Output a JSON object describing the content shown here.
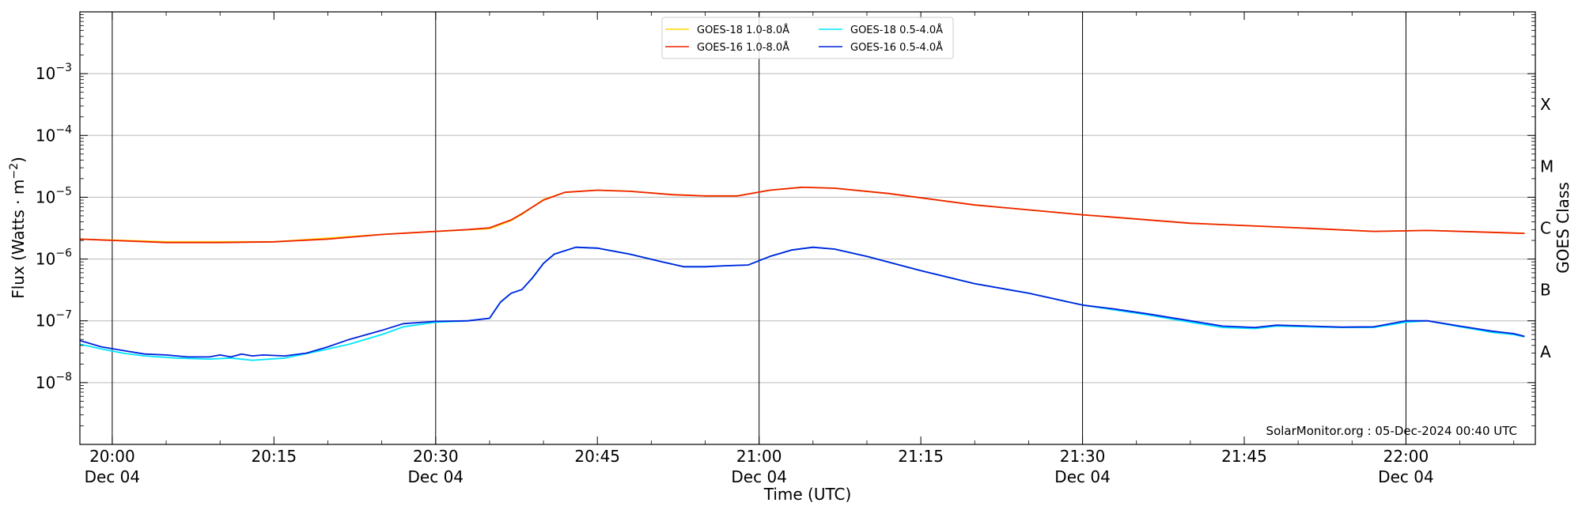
{
  "chart_data": {
    "type": "line",
    "xlabel": "Time (UTC)",
    "ylabel_pre": "Flux (Watts · m",
    "ylabel_sup": "−2",
    "ylabel_post": ")",
    "right_label": "GOES Class",
    "watermark": "SolarMonitor.org : 05-Dec-2024 00:40 UTC",
    "y_scale": "log",
    "ylim": [
      1e-09,
      0.01
    ],
    "xlim": [
      "2024-12-04T19:57:00",
      "2024-12-04T22:12:00"
    ],
    "grid": "horizontal at decades",
    "legend_position": "top-center",
    "y_ticks": [
      {
        "value": 1e-08,
        "base": "10",
        "exp": "−8"
      },
      {
        "value": 1e-07,
        "base": "10",
        "exp": "−7"
      },
      {
        "value": 1e-06,
        "base": "10",
        "exp": "−6"
      },
      {
        "value": 1e-05,
        "base": "10",
        "exp": "−5"
      },
      {
        "value": 0.0001,
        "base": "10",
        "exp": "−4"
      },
      {
        "value": 0.001,
        "base": "10",
        "exp": "−3"
      }
    ],
    "x_ticks": [
      {
        "time": "2024-12-04T20:00:00",
        "label": "20:00",
        "date": "Dec 04",
        "vline": true
      },
      {
        "time": "2024-12-04T20:15:00",
        "label": "20:15",
        "date": "",
        "vline": false
      },
      {
        "time": "2024-12-04T20:30:00",
        "label": "20:30",
        "date": "Dec 04",
        "vline": true
      },
      {
        "time": "2024-12-04T20:45:00",
        "label": "20:45",
        "date": "",
        "vline": false
      },
      {
        "time": "2024-12-04T21:00:00",
        "label": "21:00",
        "date": "Dec 04",
        "vline": true
      },
      {
        "time": "2024-12-04T21:15:00",
        "label": "21:15",
        "date": "",
        "vline": false
      },
      {
        "time": "2024-12-04T21:30:00",
        "label": "21:30",
        "date": "Dec 04",
        "vline": true
      },
      {
        "time": "2024-12-04T21:45:00",
        "label": "21:45",
        "date": "",
        "vline": false
      },
      {
        "time": "2024-12-04T22:00:00",
        "label": "22:00",
        "date": "Dec 04",
        "vline": true
      }
    ],
    "goes_classes": [
      {
        "label": "A",
        "value": 3.16e-08
      },
      {
        "label": "B",
        "value": 3.16e-07
      },
      {
        "label": "C",
        "value": 3.16e-06
      },
      {
        "label": "M",
        "value": 3.16e-05
      },
      {
        "label": "X",
        "value": 0.000316
      }
    ],
    "series": [
      {
        "name": "GOES-18 1.0-8.0Å",
        "color": "#ffd700",
        "x": [
          "2024-12-04T19:57:00",
          "2024-12-04T20:05:00",
          "2024-12-04T20:15:00",
          "2024-12-04T20:25:00",
          "2024-12-04T20:30:00",
          "2024-12-04T20:35:00",
          "2024-12-04T20:37:00",
          "2024-12-04T20:38:00",
          "2024-12-04T20:40:00",
          "2024-12-04T20:42:00",
          "2024-12-04T20:45:00",
          "2024-12-04T20:48:00",
          "2024-12-04T20:52:00",
          "2024-12-04T20:55:00",
          "2024-12-04T20:58:00",
          "2024-12-04T21:01:00",
          "2024-12-04T21:04:00",
          "2024-12-04T21:07:00",
          "2024-12-04T21:12:00",
          "2024-12-04T21:20:00",
          "2024-12-04T21:30:00",
          "2024-12-04T21:40:00",
          "2024-12-04T21:50:00",
          "2024-12-04T21:57:00",
          "2024-12-04T22:02:00",
          "2024-12-04T22:11:00"
        ],
        "y": [
          2.1e-06,
          1.9e-06,
          1.9e-06,
          2.5e-06,
          2.8e-06,
          3.1e-06,
          4.2e-06,
          5.3e-06,
          9.2e-06,
          1.2e-05,
          1.3e-05,
          1.25e-05,
          1.1e-05,
          1.05e-05,
          1.05e-05,
          1.3e-05,
          1.45e-05,
          1.4e-05,
          1.15e-05,
          7.5e-06,
          5.2e-06,
          3.8e-06,
          3.2e-06,
          2.8e-06,
          2.9e-06,
          2.6e-06
        ]
      },
      {
        "name": "GOES-16 1.0-8.0Å",
        "color": "#ee2200",
        "x": [
          "2024-12-04T19:57:00",
          "2024-12-04T20:00:00",
          "2024-12-04T20:05:00",
          "2024-12-04T20:10:00",
          "2024-12-04T20:15:00",
          "2024-12-04T20:20:00",
          "2024-12-04T20:25:00",
          "2024-12-04T20:30:00",
          "2024-12-04T20:33:00",
          "2024-12-04T20:35:00",
          "2024-12-04T20:37:00",
          "2024-12-04T20:38:00",
          "2024-12-04T20:40:00",
          "2024-12-04T20:42:00",
          "2024-12-04T20:45:00",
          "2024-12-04T20:48:00",
          "2024-12-04T20:52:00",
          "2024-12-04T20:55:00",
          "2024-12-04T20:58:00",
          "2024-12-04T21:01:00",
          "2024-12-04T21:04:00",
          "2024-12-04T21:07:00",
          "2024-12-04T21:12:00",
          "2024-12-04T21:20:00",
          "2024-12-04T21:30:00",
          "2024-12-04T21:40:00",
          "2024-12-04T21:50:00",
          "2024-12-04T21:57:00",
          "2024-12-04T22:02:00",
          "2024-12-04T22:11:00"
        ],
        "y": [
          2.1e-06,
          2e-06,
          1.85e-06,
          1.85e-06,
          1.9e-06,
          2.1e-06,
          2.5e-06,
          2.8e-06,
          3e-06,
          3.2e-06,
          4.3e-06,
          5.4e-06,
          9e-06,
          1.2e-05,
          1.3e-05,
          1.25e-05,
          1.1e-05,
          1.05e-05,
          1.05e-05,
          1.3e-05,
          1.45e-05,
          1.4e-05,
          1.15e-05,
          7.5e-06,
          5.2e-06,
          3.8e-06,
          3.2e-06,
          2.8e-06,
          2.9e-06,
          2.6e-06
        ]
      },
      {
        "name": "GOES-18 0.5-4.0Å",
        "color": "#00e5ff",
        "x": [
          "2024-12-04T19:57:00",
          "2024-12-04T19:59:00",
          "2024-12-04T20:01:00",
          "2024-12-04T20:03:00",
          "2024-12-04T20:06:00",
          "2024-12-04T20:09:00",
          "2024-12-04T20:11:00",
          "2024-12-04T20:13:00",
          "2024-12-04T20:16:00",
          "2024-12-04T20:19:00",
          "2024-12-04T20:22:00",
          "2024-12-04T20:25:00",
          "2024-12-04T20:27:00",
          "2024-12-04T20:30:00",
          "2024-12-04T20:33:00",
          "2024-12-04T20:35:00",
          "2024-12-04T20:36:00",
          "2024-12-04T20:37:00",
          "2024-12-04T20:38:00",
          "2024-12-04T20:39:00",
          "2024-12-04T20:40:00",
          "2024-12-04T20:41:00",
          "2024-12-04T20:43:00",
          "2024-12-04T20:45:00",
          "2024-12-04T20:48:00",
          "2024-12-04T20:51:00",
          "2024-12-04T20:53:00",
          "2024-12-04T20:55:00",
          "2024-12-04T20:57:00",
          "2024-12-04T20:59:00",
          "2024-12-04T21:01:00",
          "2024-12-04T21:03:00",
          "2024-12-04T21:05:00",
          "2024-12-04T21:07:00",
          "2024-12-04T21:10:00",
          "2024-12-04T21:15:00",
          "2024-12-04T21:20:00",
          "2024-12-04T21:25:00",
          "2024-12-04T21:30:00",
          "2024-12-04T21:33:00",
          "2024-12-04T21:36:00",
          "2024-12-04T21:40:00",
          "2024-12-04T21:43:00",
          "2024-12-04T21:46:00",
          "2024-12-04T21:48:00",
          "2024-12-04T21:51:00",
          "2024-12-04T21:54:00",
          "2024-12-04T21:57:00",
          "2024-12-04T22:00:00",
          "2024-12-04T22:02:00",
          "2024-12-04T22:05:00",
          "2024-12-04T22:08:00",
          "2024-12-04T22:10:00",
          "2024-12-04T22:11:00"
        ],
        "y": [
          4.2e-08,
          3.5e-08,
          3e-08,
          2.7e-08,
          2.5e-08,
          2.4e-08,
          2.5e-08,
          2.3e-08,
          2.5e-08,
          3.2e-08,
          4.2e-08,
          6e-08,
          8e-08,
          9.5e-08,
          1e-07,
          1.1e-07,
          2e-07,
          2.8e-07,
          3.2e-07,
          5e-07,
          8.5e-07,
          1.2e-06,
          1.55e-06,
          1.5e-06,
          1.2e-06,
          9e-07,
          7.5e-07,
          7.5e-07,
          7.8e-07,
          8e-07,
          1.1e-06,
          1.4e-06,
          1.55e-06,
          1.45e-06,
          1.1e-06,
          6.5e-07,
          4e-07,
          2.8e-07,
          1.8e-07,
          1.5e-07,
          1.25e-07,
          9.5e-08,
          7.8e-08,
          7.5e-08,
          8.2e-08,
          8e-08,
          7.8e-08,
          7.8e-08,
          9.5e-08,
          1e-07,
          8e-08,
          6.5e-08,
          6e-08,
          5.5e-08
        ]
      },
      {
        "name": "GOES-16 0.5-4.0Å",
        "color": "#0022dd",
        "x": [
          "2024-12-04T19:57:00",
          "2024-12-04T19:59:00",
          "2024-12-04T20:01:00",
          "2024-12-04T20:03:00",
          "2024-12-04T20:05:00",
          "2024-12-04T20:07:00",
          "2024-12-04T20:09:00",
          "2024-12-04T20:10:00",
          "2024-12-04T20:11:00",
          "2024-12-04T20:12:00",
          "2024-12-04T20:13:00",
          "2024-12-04T20:14:00",
          "2024-12-04T20:16:00",
          "2024-12-04T20:18:00",
          "2024-12-04T20:20:00",
          "2024-12-04T20:22:00",
          "2024-12-04T20:25:00",
          "2024-12-04T20:27:00",
          "2024-12-04T20:30:00",
          "2024-12-04T20:33:00",
          "2024-12-04T20:35:00",
          "2024-12-04T20:36:00",
          "2024-12-04T20:37:00",
          "2024-12-04T20:38:00",
          "2024-12-04T20:39:00",
          "2024-12-04T20:40:00",
          "2024-12-04T20:41:00",
          "2024-12-04T20:43:00",
          "2024-12-04T20:45:00",
          "2024-12-04T20:48:00",
          "2024-12-04T20:51:00",
          "2024-12-04T20:53:00",
          "2024-12-04T20:55:00",
          "2024-12-04T20:57:00",
          "2024-12-04T20:59:00",
          "2024-12-04T21:01:00",
          "2024-12-04T21:03:00",
          "2024-12-04T21:05:00",
          "2024-12-04T21:07:00",
          "2024-12-04T21:10:00",
          "2024-12-04T21:15:00",
          "2024-12-04T21:20:00",
          "2024-12-04T21:25:00",
          "2024-12-04T21:30:00",
          "2024-12-04T21:33:00",
          "2024-12-04T21:36:00",
          "2024-12-04T21:40:00",
          "2024-12-04T21:43:00",
          "2024-12-04T21:46:00",
          "2024-12-04T21:48:00",
          "2024-12-04T21:51:00",
          "2024-12-04T21:54:00",
          "2024-12-04T21:57:00",
          "2024-12-04T22:00:00",
          "2024-12-04T22:02:00",
          "2024-12-04T22:05:00",
          "2024-12-04T22:08:00",
          "2024-12-04T22:10:00",
          "2024-12-04T22:11:00"
        ],
        "y": [
          4.8e-08,
          3.8e-08,
          3.3e-08,
          2.9e-08,
          2.8e-08,
          2.6e-08,
          2.6e-08,
          2.8e-08,
          2.6e-08,
          2.9e-08,
          2.7e-08,
          2.8e-08,
          2.7e-08,
          3e-08,
          3.8e-08,
          5e-08,
          7e-08,
          9e-08,
          9.8e-08,
          1e-07,
          1.1e-07,
          2e-07,
          2.8e-07,
          3.2e-07,
          5e-07,
          8.5e-07,
          1.2e-06,
          1.55e-06,
          1.5e-06,
          1.2e-06,
          9e-07,
          7.5e-07,
          7.5e-07,
          7.8e-07,
          8e-07,
          1.1e-06,
          1.4e-06,
          1.55e-06,
          1.45e-06,
          1.1e-06,
          6.5e-07,
          4e-07,
          2.8e-07,
          1.8e-07,
          1.55e-07,
          1.3e-07,
          1e-07,
          8.2e-08,
          7.8e-08,
          8.5e-08,
          8.2e-08,
          7.9e-08,
          8e-08,
          1e-07,
          1e-07,
          8.2e-08,
          6.8e-08,
          6.2e-08,
          5.6e-08
        ]
      }
    ]
  }
}
